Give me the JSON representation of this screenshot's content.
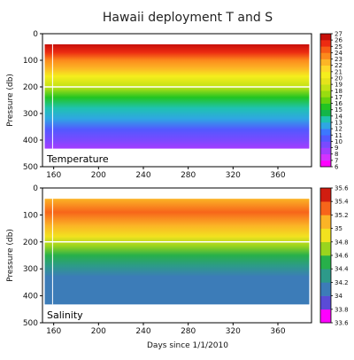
{
  "chart_data": {
    "title": "Hawaii deployment T and S",
    "xlabel": "Days since 1/1/2010",
    "x_range": [
      150,
      390
    ],
    "x_ticks": [
      160,
      200,
      240,
      280,
      320,
      360
    ],
    "panels": [
      {
        "name": "temperature",
        "type": "heatmap",
        "label": "Temperature",
        "ylabel": "Pressure (db)",
        "y_range": [
          0,
          500
        ],
        "y_reversed": true,
        "y_ticks": [
          0,
          100,
          200,
          300,
          400,
          500
        ],
        "colorbar": {
          "ticks": [
            6,
            7,
            8,
            9,
            10,
            11,
            12,
            13,
            14,
            15,
            16,
            17,
            18,
            19,
            20,
            21,
            22,
            23,
            24,
            25,
            26,
            27
          ],
          "colors": [
            "#ff00ff",
            "#d333ff",
            "#a43cff",
            "#7a4aff",
            "#5259ff",
            "#3c78ff",
            "#2fa6e3",
            "#1fc2b0",
            "#13b54a",
            "#22c422",
            "#66d10e",
            "#99dc10",
            "#c2e215",
            "#e5e31b",
            "#f5ee1d",
            "#fed82a",
            "#fcb526",
            "#fc8a1c",
            "#f75e15",
            "#ec2b11",
            "#c70f0a"
          ]
        },
        "data_extent": {
          "x": [
            152,
            388
          ],
          "p_bottom": 432
        },
        "depth_profile": [
          {
            "p": 40,
            "T": 26.2
          },
          {
            "p": 70,
            "T": 25.0
          },
          {
            "p": 100,
            "T": 23.5
          },
          {
            "p": 130,
            "T": 22.0
          },
          {
            "p": 160,
            "T": 20.5
          },
          {
            "p": 200,
            "T": 18.0
          },
          {
            "p": 240,
            "T": 15.5
          },
          {
            "p": 280,
            "T": 13.5
          },
          {
            "p": 320,
            "T": 12.0
          },
          {
            "p": 360,
            "T": 10.8
          },
          {
            "p": 400,
            "T": 9.5
          },
          {
            "p": 432,
            "T": 8.8
          }
        ]
      },
      {
        "name": "salinity",
        "type": "heatmap",
        "label": "Salinity",
        "ylabel": "Pressure (db)",
        "y_range": [
          0,
          500
        ],
        "y_reversed": true,
        "y_ticks": [
          0,
          100,
          200,
          300,
          400,
          500
        ],
        "colorbar": {
          "ticks": [
            33.6,
            33.8,
            34,
            34.2,
            34.4,
            34.6,
            34.8,
            35,
            35.2,
            35.4,
            35.6
          ],
          "tick_labels": [
            "33.6",
            "33.8",
            "34",
            "34.2",
            "34.4",
            "34.6",
            "34.8",
            "35",
            "35.2",
            "35.4",
            "35.6"
          ],
          "colors": [
            "#ff00ff",
            "#5a4bd6",
            "#3c7cb8",
            "#2d9a8a",
            "#27b04a",
            "#9ad41e",
            "#f2e21f",
            "#fbb426",
            "#f7651a",
            "#d01d10"
          ]
        },
        "data_extent": {
          "x": [
            152,
            388
          ],
          "p_bottom": 432
        },
        "depth_profile": [
          {
            "p": 40,
            "S": 35.1
          },
          {
            "p": 90,
            "S": 35.3
          },
          {
            "p": 140,
            "S": 35.1
          },
          {
            "p": 180,
            "S": 34.9
          },
          {
            "p": 215,
            "S": 34.65
          },
          {
            "p": 250,
            "S": 34.45
          },
          {
            "p": 290,
            "S": 34.25
          },
          {
            "p": 330,
            "S": 34.12
          },
          {
            "p": 380,
            "S": 34.05
          },
          {
            "p": 432,
            "S": 34.02
          }
        ]
      }
    ]
  }
}
